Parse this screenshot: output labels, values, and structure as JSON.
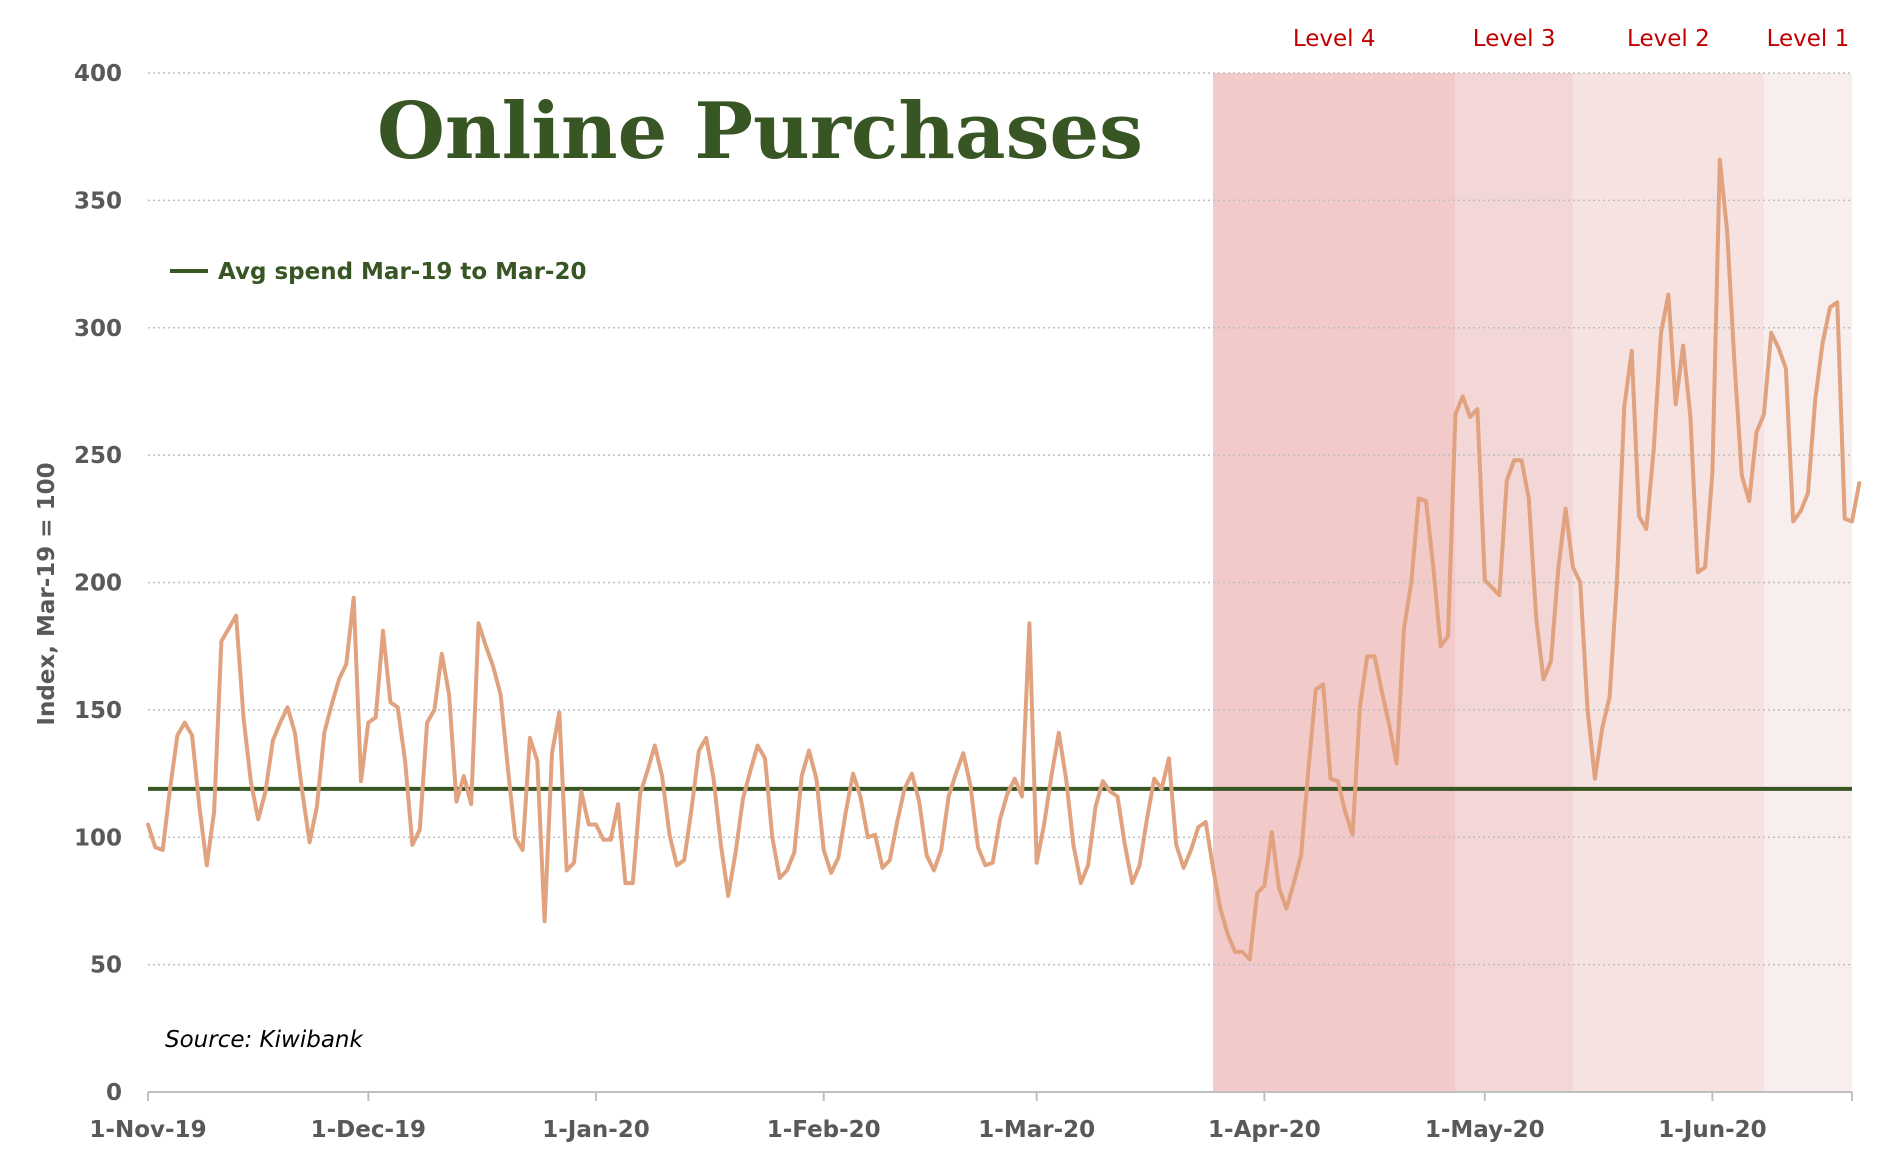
{
  "chart_data": {
    "type": "line",
    "title": "Online Purchases",
    "ylabel": "Index, Mar-19 = 100",
    "xlabel": "",
    "ylim": [
      0,
      400
    ],
    "yticks": [
      0,
      50,
      100,
      150,
      200,
      250,
      300,
      350,
      400
    ],
    "grid": "horizontal dotted",
    "x_start": "2019-11-01",
    "x_end": "2020-06-20",
    "xtick_labels": [
      {
        "date": "2019-11-01",
        "label": "1-Nov-19"
      },
      {
        "date": "2019-12-01",
        "label": "1-Dec-19"
      },
      {
        "date": "2020-01-01",
        "label": "1-Jan-20"
      },
      {
        "date": "2020-02-01",
        "label": "1-Feb-20"
      },
      {
        "date": "2020-03-01",
        "label": "1-Mar-20"
      },
      {
        "date": "2020-04-01",
        "label": "1-Apr-20"
      },
      {
        "date": "2020-05-01",
        "label": "1-May-20"
      },
      {
        "date": "2020-06-01",
        "label": "1-Jun-20"
      }
    ],
    "bands": [
      {
        "label": "Level 4",
        "start": "2020-03-25",
        "end": "2020-04-27",
        "color": "#f2caca"
      },
      {
        "label": "Level 3",
        "start": "2020-04-27",
        "end": "2020-05-13",
        "color": "#f3d6d6"
      },
      {
        "label": "Level 2",
        "start": "2020-05-13",
        "end": "2020-06-08",
        "color": "#f7e2e2"
      },
      {
        "label": "Level 1",
        "start": "2020-06-08",
        "end": "2020-06-21",
        "color": "#f9eeee"
      }
    ],
    "reference_line": {
      "name": "Avg spend Mar-19 to Mar-20",
      "value": 119,
      "color": "#375623"
    },
    "series": [
      {
        "color": "#e0a27f",
        "values": [
          105,
          96,
          95,
          119,
          140,
          145,
          140,
          112,
          89,
          110,
          177,
          182,
          187,
          147,
          122,
          107,
          118,
          138,
          145,
          151,
          141,
          118,
          98,
          112,
          141,
          152,
          162,
          168,
          194,
          122,
          145,
          147,
          181,
          153,
          151,
          130,
          97,
          103,
          145,
          150,
          172,
          156,
          114,
          124,
          113,
          184,
          175,
          167,
          156,
          127,
          100,
          95,
          139,
          130,
          67,
          133,
          149,
          87,
          90,
          118,
          105,
          105,
          99,
          99,
          113,
          82,
          82,
          117,
          126,
          136,
          124,
          101,
          89,
          91,
          111,
          134,
          139,
          123,
          97,
          77,
          94,
          115,
          126,
          136,
          131,
          100,
          84,
          87,
          94,
          124,
          134,
          123,
          95,
          86,
          92,
          110,
          125,
          116,
          100,
          101,
          88,
          91,
          106,
          119,
          125,
          114,
          93,
          87,
          95,
          116,
          125,
          133,
          120,
          96,
          89,
          90,
          107,
          117,
          123,
          116,
          184,
          90,
          105,
          124,
          141,
          123,
          97,
          82,
          89,
          112,
          122,
          118,
          116,
          97,
          82,
          89,
          107,
          123,
          119,
          131,
          97,
          88,
          95,
          104,
          106,
          88,
          72,
          62,
          55,
          55,
          52,
          78,
          81,
          102,
          80,
          72,
          82,
          93,
          127,
          158,
          160,
          123,
          122,
          110,
          101,
          151,
          171,
          171,
          157,
          144,
          129,
          182,
          200,
          233,
          232,
          206,
          175,
          179,
          266,
          273,
          265,
          268,
          201,
          198,
          195,
          240,
          248,
          248,
          233,
          186,
          162,
          169,
          205,
          229,
          206,
          200,
          150,
          123,
          143,
          155,
          201,
          269,
          291,
          226,
          221,
          252,
          298,
          313,
          270,
          293,
          265,
          204,
          206,
          243,
          366,
          338,
          286,
          242,
          232,
          259,
          266,
          298,
          292,
          284,
          224,
          228,
          235,
          272,
          294,
          308,
          310,
          225,
          224,
          239
        ]
      }
    ],
    "source": "Source: Kiwibank"
  }
}
